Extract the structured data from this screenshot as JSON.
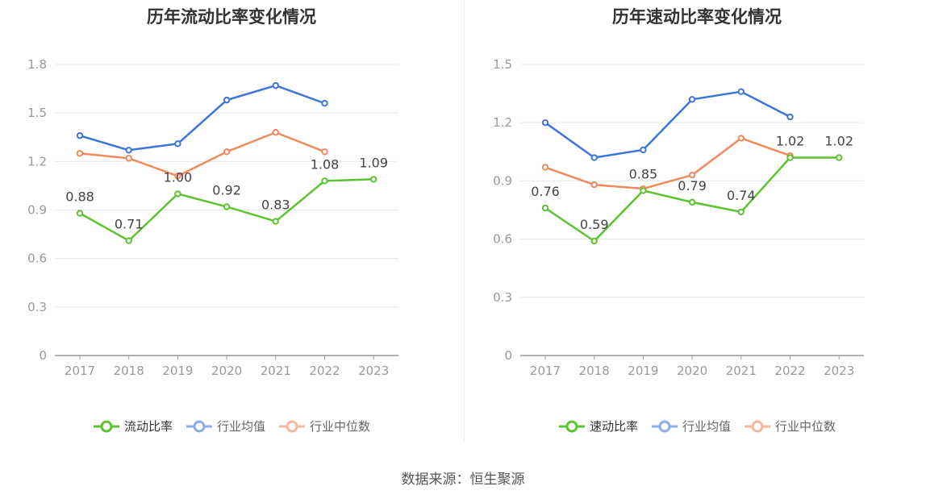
{
  "source": "数据来源：恒生聚源",
  "colors": {
    "company": "#5cc430",
    "industry_avg": "#3e75d9",
    "industry_median": "#f08a5d",
    "grid": "#e6e8f0",
    "axis": "#999999"
  },
  "chart_data": [
    {
      "type": "line",
      "title": "历年流动比率变化情况",
      "x": [
        "2017",
        "2018",
        "2019",
        "2020",
        "2021",
        "2022",
        "2023"
      ],
      "ylim": [
        0,
        1.8
      ],
      "yticks": [
        0,
        0.3,
        0.6,
        0.9,
        1.2,
        1.5,
        1.8
      ],
      "ytick_labels": [
        "0",
        "0.3",
        "0.6",
        "0.9",
        "1.2",
        "1.5",
        "1.8"
      ],
      "grid": true,
      "legend_position": "bottom",
      "series": [
        {
          "name": "流动比率",
          "values": [
            0.88,
            0.71,
            1.0,
            0.92,
            0.83,
            1.08,
            1.09
          ],
          "labels": [
            "0.88",
            "0.71",
            "1.00",
            "0.92",
            "0.83",
            "1.08",
            "1.09"
          ],
          "color_key": "company"
        },
        {
          "name": "行业均值",
          "values": [
            1.36,
            1.27,
            1.31,
            1.58,
            1.67,
            1.56,
            null
          ],
          "color_key": "industry_avg"
        },
        {
          "name": "行业中位数",
          "values": [
            1.25,
            1.22,
            1.11,
            1.26,
            1.38,
            1.26,
            null
          ],
          "color_key": "industry_median"
        }
      ]
    },
    {
      "type": "line",
      "title": "历年速动比率变化情况",
      "x": [
        "2017",
        "2018",
        "2019",
        "2020",
        "2021",
        "2022",
        "2023"
      ],
      "ylim": [
        0,
        1.5
      ],
      "yticks": [
        0,
        0.3,
        0.6,
        0.9,
        1.2,
        1.5
      ],
      "ytick_labels": [
        "0",
        "0.3",
        "0.6",
        "0.9",
        "1.2",
        "1.5"
      ],
      "grid": true,
      "legend_position": "bottom",
      "series": [
        {
          "name": "速动比率",
          "values": [
            0.76,
            0.59,
            0.85,
            0.79,
            0.74,
            1.02,
            1.02
          ],
          "labels": [
            "0.76",
            "0.59",
            "0.85",
            "0.79",
            "0.74",
            "1.02",
            "1.02"
          ],
          "color_key": "company"
        },
        {
          "name": "行业均值",
          "values": [
            1.2,
            1.02,
            1.06,
            1.32,
            1.36,
            1.23,
            null
          ],
          "color_key": "industry_avg"
        },
        {
          "name": "行业中位数",
          "values": [
            0.97,
            0.88,
            0.86,
            0.93,
            1.12,
            1.03,
            null
          ],
          "color_key": "industry_median"
        }
      ]
    }
  ]
}
